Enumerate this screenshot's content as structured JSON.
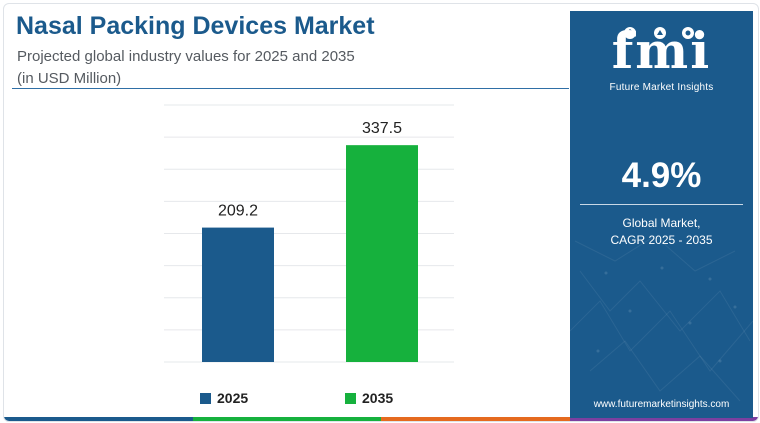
{
  "header": {
    "title": "Nasal Packing Devices Market",
    "subtitle_line1": "Projected global industry values for 2025 and 2035",
    "subtitle_line2": "(in USD Million)"
  },
  "chart_data": {
    "type": "bar",
    "categories": [
      "2025",
      "2035"
    ],
    "values": [
      209.2,
      337.5
    ],
    "data_labels": [
      "209.2",
      "337.5"
    ],
    "colors": [
      "#1b5a8c",
      "#16b13d"
    ],
    "ylim": [
      0,
      400
    ],
    "grid": true,
    "legend_position": "bottom"
  },
  "legend": {
    "items": [
      {
        "label": "2025",
        "color": "#1b5a8c"
      },
      {
        "label": "2035",
        "color": "#16b13d"
      }
    ]
  },
  "panel": {
    "logo": "fmi",
    "logo_caption": "Future Market Insights",
    "cagr_value": "4.9%",
    "cagr_label_line1": "Global Market,",
    "cagr_label_line2": "CAGR 2025 - 2035",
    "website": "www.futuremarketinsights.com",
    "background": "#1b5a8c"
  },
  "bottom_bar_colors": [
    "#1b5a8c",
    "#16b13d",
    "#e56a1f",
    "#7b3fa0"
  ]
}
